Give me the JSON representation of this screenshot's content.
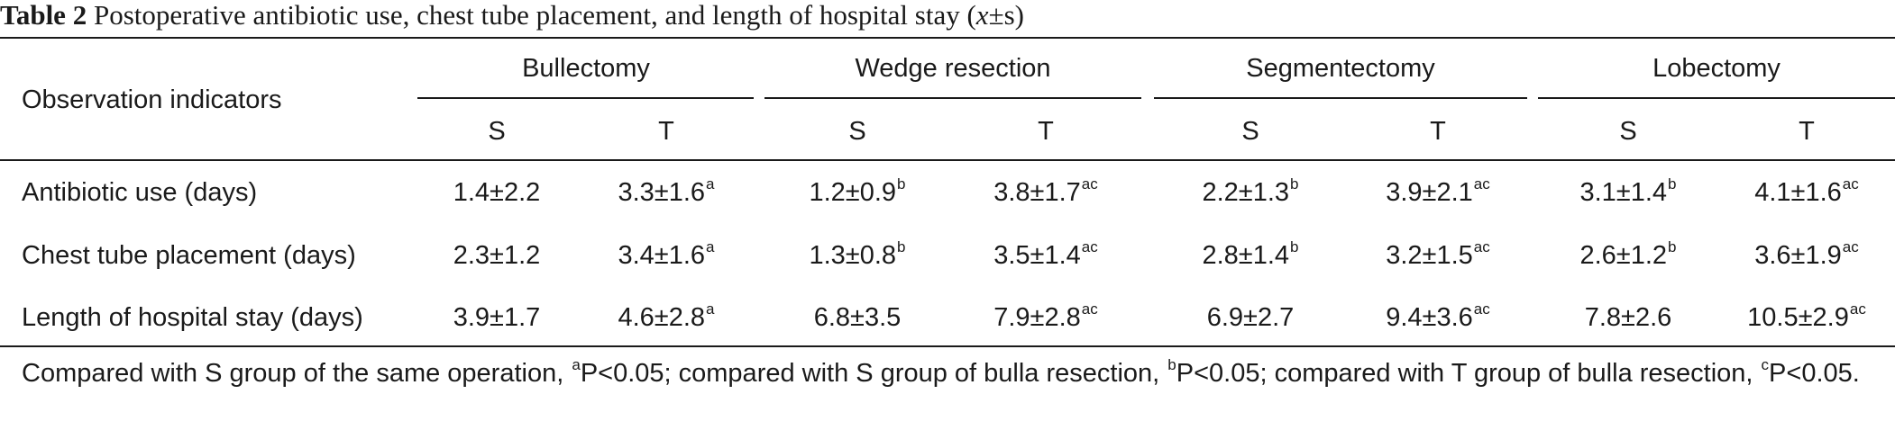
{
  "caption": {
    "label": "Table 2",
    "text": " Postoperative antibiotic use, chest tube placement, and length of hospital stay (",
    "xbar": "x",
    "suffix": "±s)"
  },
  "table": {
    "row_header": "Observation indicators",
    "groups": [
      "Bullectomy",
      "Wedge resection",
      "Segmentectomy",
      "Lobectomy"
    ],
    "subcolumns": [
      "S",
      "T",
      "S",
      "T",
      "S",
      "T",
      "S",
      "T"
    ],
    "rows": [
      {
        "label": "Antibiotic use (days)",
        "cells": [
          {
            "v": "1.4±2.2",
            "s": ""
          },
          {
            "v": "3.3±1.6",
            "s": "a"
          },
          {
            "v": "1.2±0.9",
            "s": "b"
          },
          {
            "v": "3.8±1.7",
            "s": "ac"
          },
          {
            "v": "2.2±1.3",
            "s": "b"
          },
          {
            "v": "3.9±2.1",
            "s": "ac"
          },
          {
            "v": "3.1±1.4",
            "s": "b"
          },
          {
            "v": "4.1±1.6",
            "s": "ac"
          }
        ]
      },
      {
        "label": "Chest tube placement (days)",
        "cells": [
          {
            "v": "2.3±1.2",
            "s": ""
          },
          {
            "v": "3.4±1.6",
            "s": "a"
          },
          {
            "v": "1.3±0.8",
            "s": "b"
          },
          {
            "v": "3.5±1.4",
            "s": "ac"
          },
          {
            "v": "2.8±1.4",
            "s": "b"
          },
          {
            "v": "3.2±1.5",
            "s": "ac"
          },
          {
            "v": "2.6±1.2",
            "s": "b"
          },
          {
            "v": "3.6±1.9",
            "s": "ac"
          }
        ]
      },
      {
        "label": "Length of hospital stay (days)",
        "cells": [
          {
            "v": "3.9±1.7",
            "s": ""
          },
          {
            "v": "4.6±2.8",
            "s": "a"
          },
          {
            "v": "6.8±3.5",
            "s": ""
          },
          {
            "v": "7.9±2.8",
            "s": "ac"
          },
          {
            "v": "6.9±2.7",
            "s": ""
          },
          {
            "v": "9.4±3.6",
            "s": "ac"
          },
          {
            "v": "7.8±2.6",
            "s": ""
          },
          {
            "v": "10.5±2.9",
            "s": "ac"
          }
        ]
      }
    ]
  },
  "footnote": {
    "t1": "Compared with S group of the same operation, ",
    "s1": "a",
    "t2": "P<0.05; compared with S group of bulla resection, ",
    "s2": "b",
    "t3": "P<0.05; compared with T group of bulla resection, ",
    "s3": "c",
    "t4": "P<0.05."
  }
}
